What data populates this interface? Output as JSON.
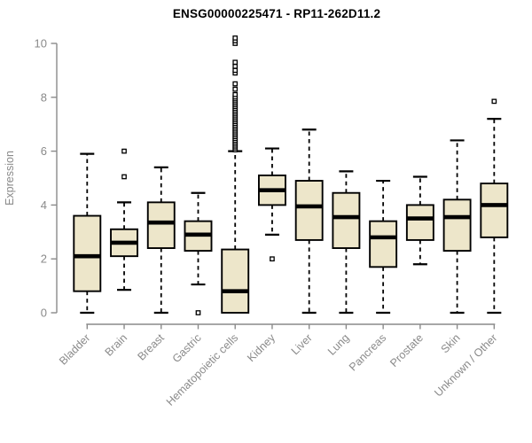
{
  "chart_data": {
    "type": "boxplot",
    "title": "ENSG00000225471 - RP11-262D11.2",
    "ylabel": "Expression",
    "xlabel": "",
    "ylim": [
      0,
      10
    ],
    "yticks": [
      0,
      2,
      4,
      6,
      8,
      10
    ],
    "grid": "off",
    "legend": "none",
    "categories": [
      "Bladder",
      "Brain",
      "Breast",
      "Gastric",
      "Hematopoietic cells",
      "Kidney",
      "Liver",
      "Lung",
      "Pancreas",
      "Prostate",
      "Skin",
      "Unknown / Other"
    ],
    "series": [
      {
        "name": "Bladder",
        "whisker_low": 0.0,
        "q1": 0.8,
        "median": 2.1,
        "q3": 3.6,
        "whisker_high": 5.9,
        "outliers": []
      },
      {
        "name": "Brain",
        "whisker_low": 0.85,
        "q1": 2.1,
        "median": 2.6,
        "q3": 3.1,
        "whisker_high": 4.1,
        "outliers": [
          5.05,
          6.0
        ]
      },
      {
        "name": "Breast",
        "whisker_low": 0.0,
        "q1": 2.4,
        "median": 3.35,
        "q3": 4.1,
        "whisker_high": 5.4,
        "outliers": []
      },
      {
        "name": "Gastric",
        "whisker_low": 1.05,
        "q1": 2.3,
        "median": 2.9,
        "q3": 3.4,
        "whisker_high": 4.45,
        "outliers": [
          0.0
        ]
      },
      {
        "name": "Hematopoietic cells",
        "whisker_low": 0.0,
        "q1": 0.0,
        "median": 0.8,
        "q3": 2.35,
        "whisker_high": 6.0,
        "outliers": [
          6.05,
          6.12,
          6.19,
          6.26,
          6.33,
          6.4,
          6.47,
          6.54,
          6.61,
          6.68,
          6.75,
          6.82,
          6.89,
          6.96,
          7.03,
          7.1,
          7.17,
          7.24,
          7.31,
          7.38,
          7.45,
          7.52,
          7.59,
          7.66,
          7.73,
          7.8,
          7.87,
          7.94,
          8.01,
          8.1,
          8.3,
          8.5,
          8.9,
          9.0,
          9.15,
          9.3,
          10.0,
          10.1,
          10.2
        ]
      },
      {
        "name": "Kidney",
        "whisker_low": 2.9,
        "q1": 4.0,
        "median": 4.55,
        "q3": 5.1,
        "whisker_high": 6.1,
        "outliers": [
          2.0
        ]
      },
      {
        "name": "Liver",
        "whisker_low": 0.0,
        "q1": 2.7,
        "median": 3.95,
        "q3": 4.9,
        "whisker_high": 6.8,
        "outliers": []
      },
      {
        "name": "Lung",
        "whisker_low": 0.0,
        "q1": 2.4,
        "median": 3.55,
        "q3": 4.45,
        "whisker_high": 5.25,
        "outliers": []
      },
      {
        "name": "Pancreas",
        "whisker_low": 0.0,
        "q1": 1.7,
        "median": 2.8,
        "q3": 3.4,
        "whisker_high": 4.9,
        "outliers": []
      },
      {
        "name": "Prostate",
        "whisker_low": 1.8,
        "q1": 2.7,
        "median": 3.5,
        "q3": 4.0,
        "whisker_high": 5.05,
        "outliers": []
      },
      {
        "name": "Skin",
        "whisker_low": 0.0,
        "q1": 2.3,
        "median": 3.55,
        "q3": 4.2,
        "whisker_high": 6.4,
        "outliers": []
      },
      {
        "name": "Unknown / Other",
        "whisker_low": 0.0,
        "q1": 2.8,
        "median": 4.0,
        "q3": 4.8,
        "whisker_high": 7.2,
        "outliers": [
          7.85
        ]
      }
    ],
    "colors": {
      "box_fill": "#EDE6CA",
      "box_border": "#000000",
      "median": "#000000",
      "whisker": "#000000",
      "outlier_fill": "#FFFFFF",
      "outlier_border": "#000000",
      "axis": "#8A8A8A",
      "tick_label": "#8A8A8A",
      "axis_label": "#8A8A8A",
      "title": "#000000",
      "background": "#FFFFFF"
    }
  }
}
